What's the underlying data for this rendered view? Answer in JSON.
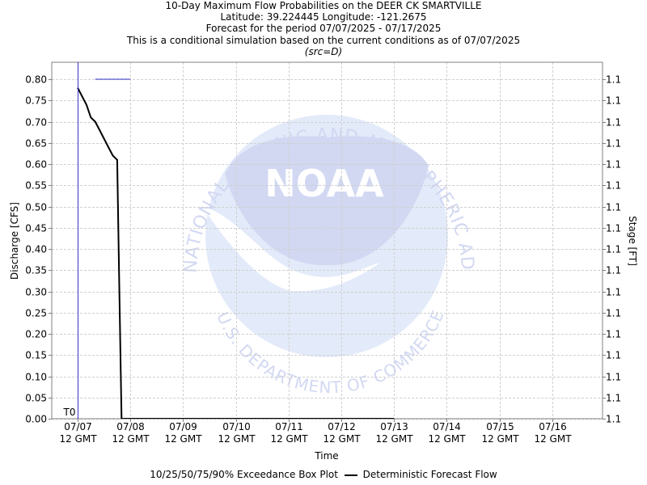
{
  "titles": {
    "line1": "10-Day Maximum Flow Probabilities on the DEER CK SMARTVILLE",
    "line2": "Latitude: 39.224445 Longitude: -121.2675",
    "line3": "Forecast for the period 07/07/2025 - 07/17/2025",
    "line4": "This is a conditional simulation based on the current conditions as of 07/07/2025",
    "line5": "(src=D)"
  },
  "watermark": {
    "arc_top": "NATIONAL OCEANIC AND ATMOSPHERIC ADMINISTRATION",
    "arc_bottom": "U.S. DEPARTMENT OF COMMERCE",
    "logo_text": "NOAA"
  },
  "legend": {
    "boxplot": "10/25/50/75/90% Exceedance Box Plot",
    "deterministic": "Deterministic Forecast Flow"
  },
  "chart_data": {
    "type": "line",
    "xlabel": "Time",
    "ylabel": "Discharge [CFS]",
    "y2label": "Stage [FT]",
    "ylim": [
      0,
      0.84
    ],
    "xlim": [
      "2025-07-07 12:00",
      "2025-07-17 12:00"
    ],
    "x_tick_dates": [
      "07/07",
      "07/08",
      "07/09",
      "07/10",
      "07/11",
      "07/12",
      "07/13",
      "07/14",
      "07/15",
      "07/16"
    ],
    "x_tick_time": "12 GMT",
    "y_ticks": [
      "0.00",
      "0.05",
      "0.10",
      "0.15",
      "0.20",
      "0.25",
      "0.30",
      "0.35",
      "0.40",
      "0.45",
      "0.50",
      "0.55",
      "0.60",
      "0.65",
      "0.70",
      "0.75",
      "0.80"
    ],
    "y2_tick": "1.1",
    "grid": true,
    "t0_label": "T0",
    "t0_x": "2025-07-07 12:00",
    "series": [
      {
        "name": "Deterministic Forecast Flow",
        "color": "#000000",
        "x": [
          "2025-07-07 12:00",
          "2025-07-07 14:00",
          "2025-07-07 16:00",
          "2025-07-07 18:00",
          "2025-07-07 20:00",
          "2025-07-07 22:00",
          "2025-07-08 00:00",
          "2025-07-08 02:00",
          "2025-07-08 04:00",
          "2025-07-08 06:00",
          "2025-07-08 07:00",
          "2025-07-08 08:00",
          "2025-07-08 09:00",
          "2025-07-08 10:00",
          "2025-07-09 12:00",
          "2025-07-13 12:00"
        ],
        "y": [
          0.78,
          0.76,
          0.74,
          0.71,
          0.7,
          0.68,
          0.66,
          0.64,
          0.62,
          0.61,
          0.3,
          0.0,
          0.0,
          0.0,
          0.0,
          0.0
        ]
      },
      {
        "name": "",
        "color": "#3333cc",
        "x": [
          "2025-07-07 20:00",
          "2025-07-08 12:00"
        ],
        "y": [
          0.8,
          0.8
        ]
      }
    ]
  }
}
